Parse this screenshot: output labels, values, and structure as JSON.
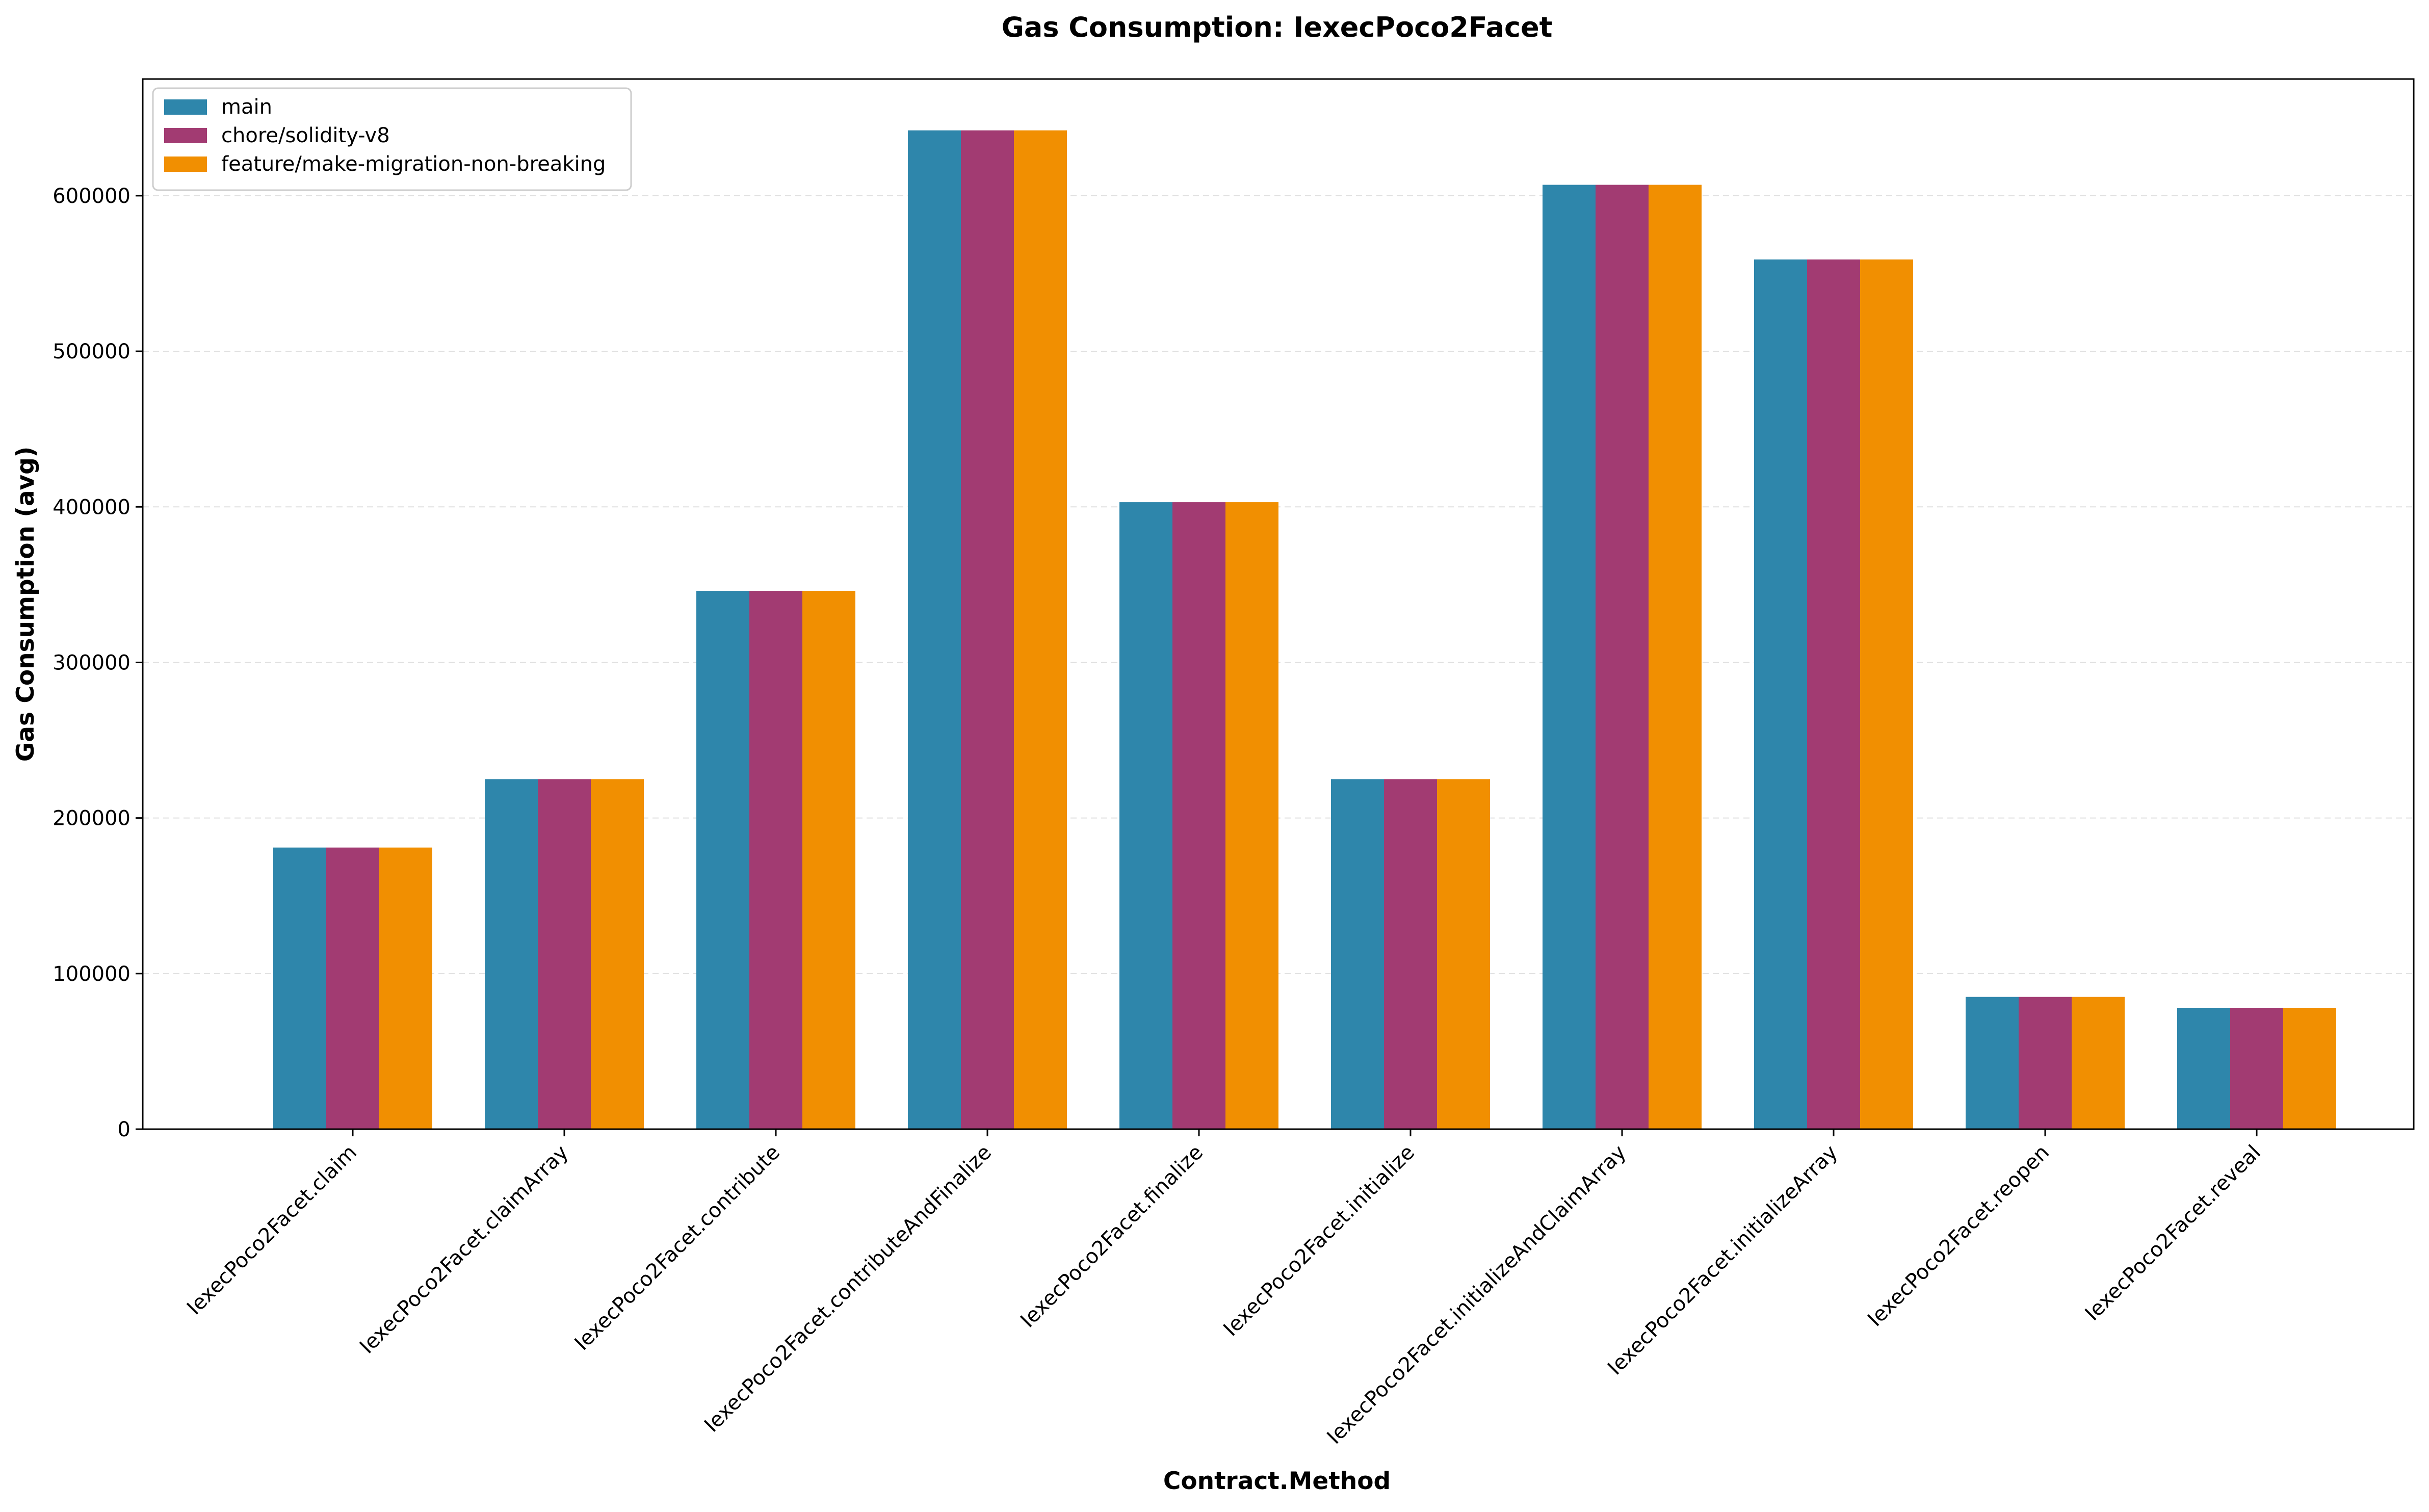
{
  "chart_data": {
    "type": "bar",
    "title": "Gas Consumption: IexecPoco2Facet",
    "xlabel": "Contract.Method",
    "ylabel": "Gas Consumption (avg)",
    "categories": [
      "IexecPoco2Facet.claim",
      "IexecPoco2Facet.claimArray",
      "IexecPoco2Facet.contribute",
      "IexecPoco2Facet.contributeAndFinalize",
      "IexecPoco2Facet.finalize",
      "IexecPoco2Facet.initialize",
      "IexecPoco2Facet.initializeAndClaimArray",
      "IexecPoco2Facet.initializeArray",
      "IexecPoco2Facet.reopen",
      "IexecPoco2Facet.reveal"
    ],
    "series": [
      {
        "name": "main",
        "color": "#2E86AB",
        "values": [
          181000,
          225000,
          346000,
          642000,
          403000,
          225000,
          607000,
          559000,
          85000,
          78000
        ]
      },
      {
        "name": "chore/solidity-v8",
        "color": "#A23B72",
        "values": [
          181000,
          225000,
          346000,
          642000,
          403000,
          225000,
          607000,
          559000,
          85000,
          78000
        ]
      },
      {
        "name": "feature/make-migration-non-breaking",
        "color": "#F18F01",
        "values": [
          181000,
          225000,
          346000,
          642000,
          403000,
          225000,
          607000,
          559000,
          85000,
          78000
        ]
      }
    ],
    "ylim": [
      0,
      675000
    ],
    "yticks": [
      0,
      100000,
      200000,
      300000,
      400000,
      500000,
      600000
    ],
    "ytick_labels": [
      "0",
      "100000",
      "200000",
      "300000",
      "400000",
      "500000",
      "600000"
    ],
    "grid": "y-dashed",
    "legend_position": "upper left"
  }
}
